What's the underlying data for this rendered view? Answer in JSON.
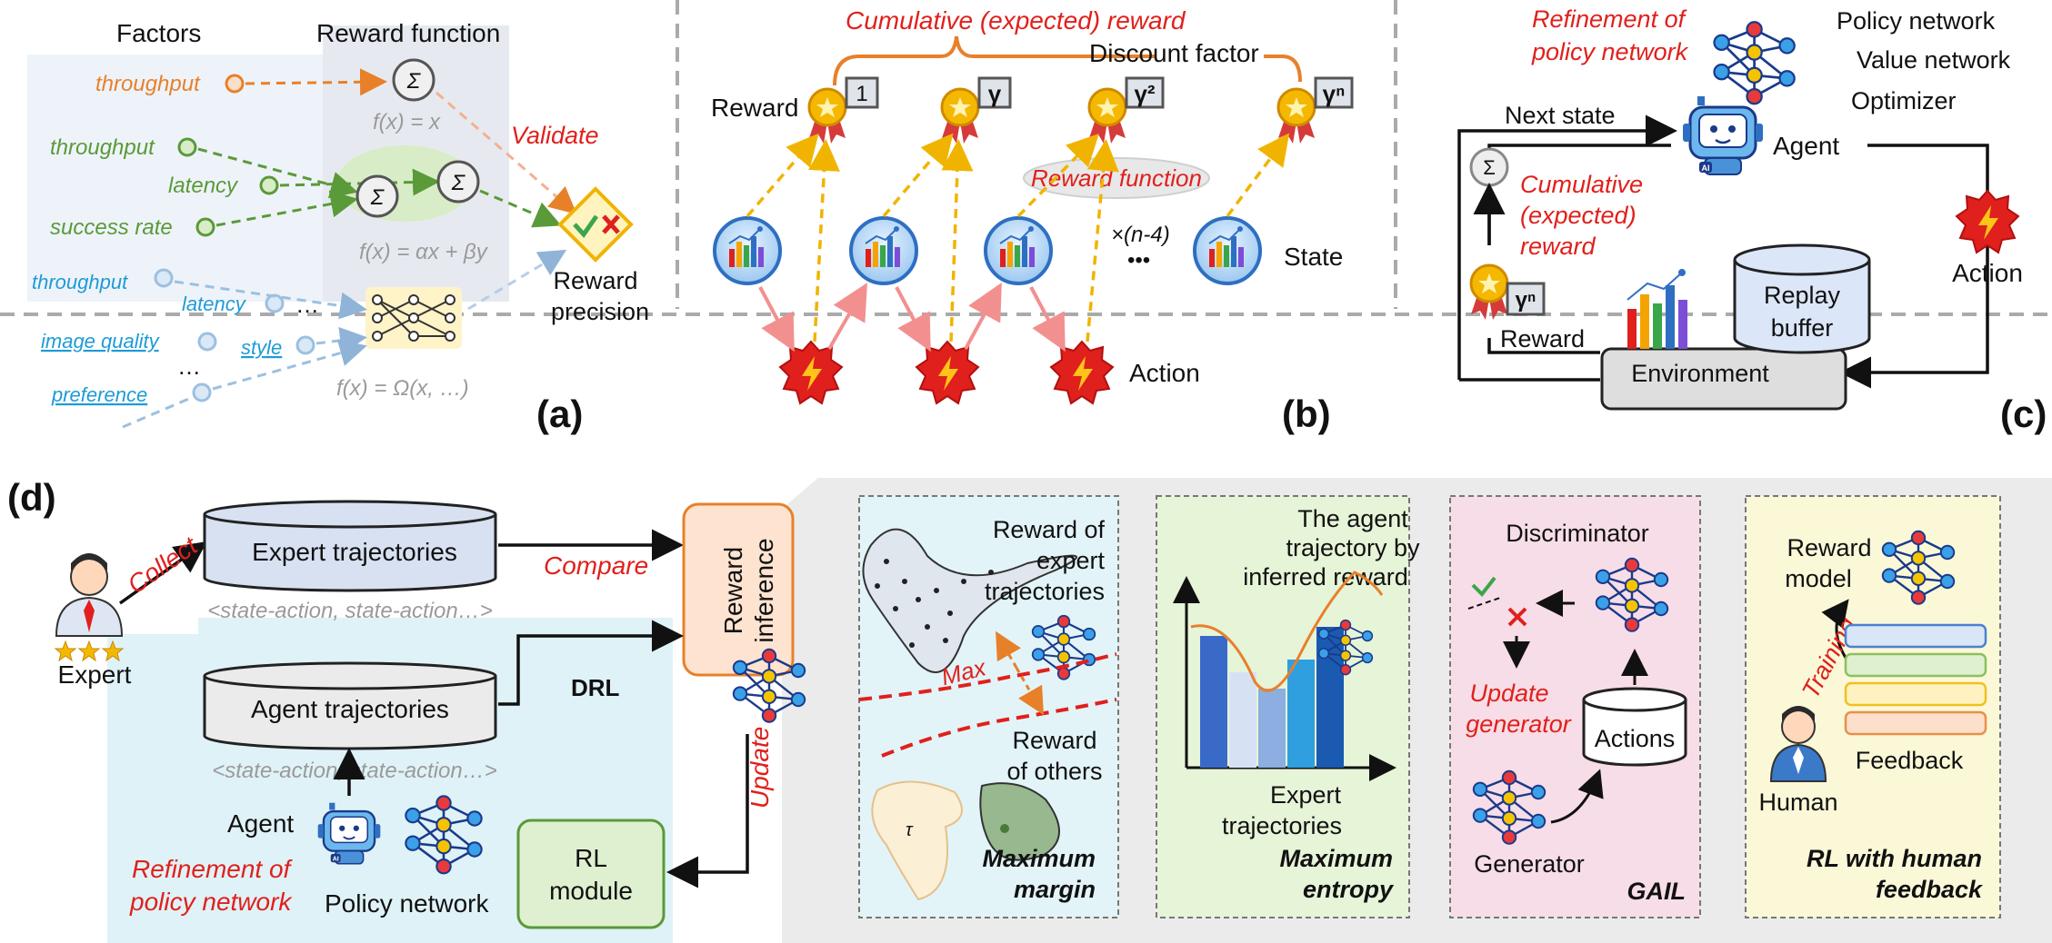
{
  "panel_labels": {
    "a": "(a)",
    "b": "(b)",
    "c": "(c)",
    "d": "(d)"
  },
  "panel_a": {
    "factors_header": "Factors",
    "reward_header": "Reward function",
    "row1": {
      "factor": "throughput",
      "formula": "f(x) = x"
    },
    "row2": {
      "factors": [
        "throughput",
        "latency",
        "success rate"
      ],
      "formula": "f(x) = αx + βy"
    },
    "row3": {
      "factors": [
        "throughput",
        "latency",
        "image quality",
        "style",
        "preference"
      ],
      "formula": "f(x) = Ω(x, …)"
    },
    "ellipsis": "…",
    "validate": "Validate",
    "reward_precision": [
      "Reward",
      "precision"
    ],
    "sigma": "Σ"
  },
  "panel_b": {
    "cumulative": "Cumulative (expected) reward",
    "discount": "Discount factor",
    "reward": "Reward",
    "gammas": [
      "1",
      "γ",
      "γ²",
      "γⁿ"
    ],
    "reward_function": "Reward function",
    "repeat": "×(n-4)",
    "dots": "•••",
    "state": "State",
    "action": "Action"
  },
  "panel_c": {
    "refinement": [
      "Refinement of",
      "policy network"
    ],
    "policy_network": "Policy network",
    "value_network": "Value network",
    "optimizer": "Optimizer",
    "next_state": "Next state",
    "agent": "Agent",
    "sigma": "Σ",
    "cumulative": [
      "Cumulative",
      "(expected)",
      "reward"
    ],
    "gamma": "γⁿ",
    "replay": [
      "Replay",
      "buffer"
    ],
    "reward": "Reward",
    "environment": "Environment",
    "action": "Action"
  },
  "panel_d": {
    "expert": "Expert",
    "collect": "Collect",
    "expert_traj": "Expert trajectories",
    "sa1": "<state-action, state-action…>",
    "compare": "Compare",
    "reward_inference": [
      "Reward",
      "inference"
    ],
    "drl": "DRL",
    "agent_traj": "Agent trajectories",
    "sa2": "<state-action, state-action…>",
    "agent": "Agent",
    "refinement": [
      "Refinement of",
      "policy network"
    ],
    "policy_network": "Policy network",
    "update": "Update",
    "rl_module": [
      "RL",
      "module"
    ],
    "mm": {
      "reward_expert": [
        "Reward of",
        "expert",
        "trajectories"
      ],
      "max": "Max",
      "reward_others": [
        "Reward",
        "of others"
      ],
      "title": [
        "Maximum",
        "margin"
      ],
      "tau": "τ"
    },
    "me": {
      "caption": [
        "The agent",
        "trajectory by",
        "inferred reward"
      ],
      "expert": [
        "Expert",
        "trajectories"
      ],
      "title": [
        "Maximum",
        "entropy"
      ]
    },
    "gail": {
      "discriminator": "Discriminator",
      "update_gen": [
        "Update",
        "generator"
      ],
      "actions": "Actions",
      "generator": "Generator",
      "title": "GAIL"
    },
    "rlhf": {
      "reward_model": [
        "Reward",
        "model"
      ],
      "training": "Training",
      "human": "Human",
      "feedback": "Feedback",
      "title": [
        "RL with human",
        "feedback"
      ]
    }
  },
  "colors": {
    "red": "#e0201c",
    "orange": "#e8802a",
    "green": "#5a9a38",
    "blue": "#1e9bd6",
    "gold": "#f5c400"
  }
}
